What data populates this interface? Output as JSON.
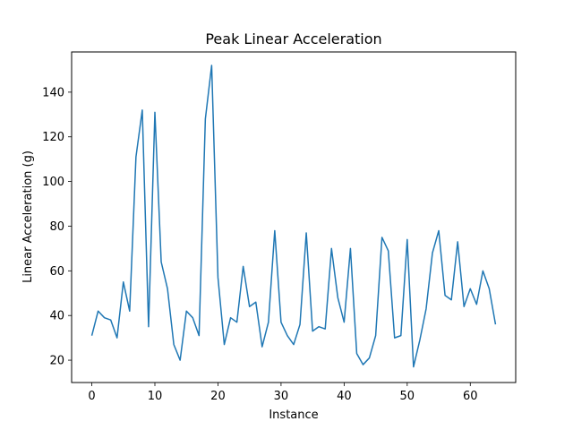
{
  "chart_data": {
    "type": "line",
    "title": "Peak Linear Acceleration",
    "xlabel": "Instance",
    "ylabel": "Linear Acceleration (g)",
    "xlim": [
      -3.2,
      67.2
    ],
    "ylim": [
      10,
      158
    ],
    "xticks": [
      0,
      10,
      20,
      30,
      40,
      50,
      60
    ],
    "yticks": [
      20,
      40,
      60,
      80,
      100,
      120,
      140
    ],
    "grid": false,
    "legend": "none",
    "series": [
      {
        "color": "#1f77b4",
        "x": [
          0,
          1,
          2,
          3,
          4,
          5,
          6,
          7,
          8,
          9,
          10,
          11,
          12,
          13,
          14,
          15,
          16,
          17,
          18,
          19,
          20,
          21,
          22,
          23,
          24,
          25,
          26,
          27,
          28,
          29,
          30,
          31,
          32,
          33,
          34,
          35,
          36,
          37,
          38,
          39,
          40,
          41,
          42,
          43,
          44,
          45,
          46,
          47,
          48,
          49,
          50,
          51,
          52,
          53,
          54,
          55,
          56,
          57,
          58,
          59,
          60,
          61,
          62,
          63,
          64
        ],
        "values": [
          31,
          42,
          39,
          38,
          30,
          55,
          42,
          111,
          132,
          35,
          131,
          64,
          52,
          27,
          20,
          42,
          39,
          31,
          128,
          152,
          57,
          27,
          39,
          37,
          62,
          44,
          46,
          26,
          37,
          78,
          37,
          31,
          27,
          36,
          77,
          33,
          35,
          34,
          70,
          48,
          37,
          70,
          23,
          18,
          21,
          31,
          75,
          69,
          30,
          31,
          74,
          17,
          29,
          43,
          68,
          78,
          49,
          47,
          73,
          44,
          52,
          45,
          60,
          52,
          36
        ]
      }
    ]
  }
}
